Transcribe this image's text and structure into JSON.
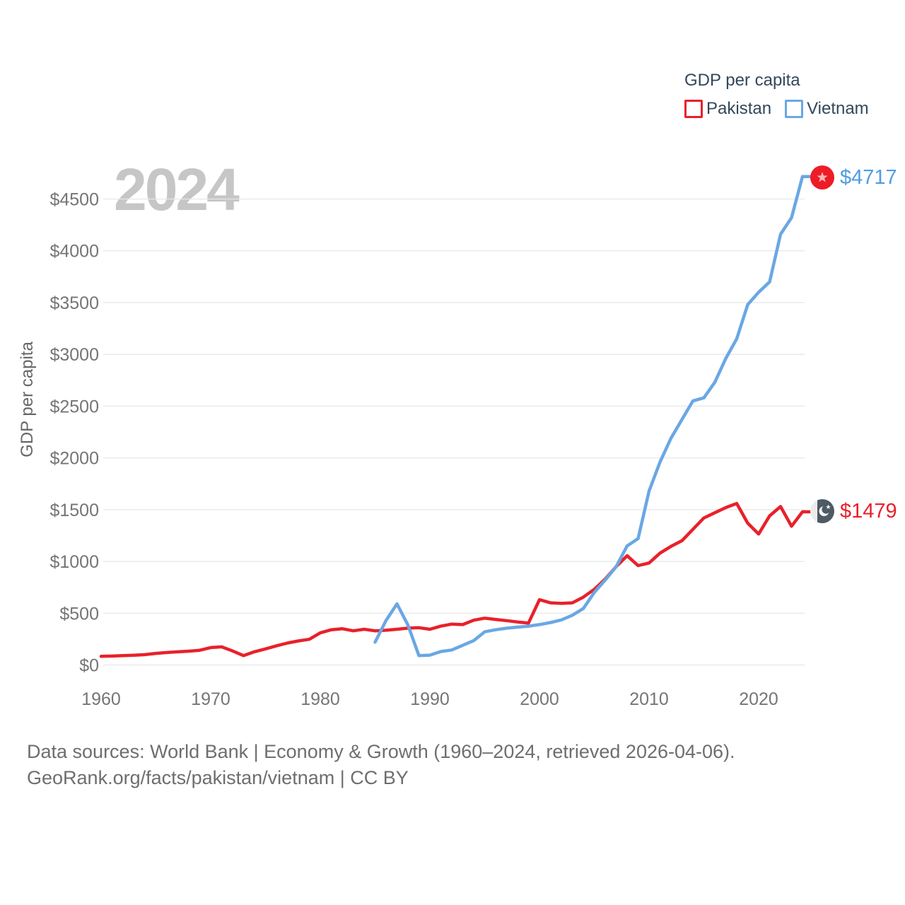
{
  "watermark_year": "2024",
  "legend": {
    "title": "GDP per capita",
    "items": [
      {
        "label": "Pakistan",
        "color": "#e8212a"
      },
      {
        "label": "Vietnam",
        "color": "#6aa7e4"
      }
    ]
  },
  "axes": {
    "y_title": "GDP per capita",
    "y_ticks": [
      {
        "label": "$0",
        "value": 0
      },
      {
        "label": "$500",
        "value": 500
      },
      {
        "label": "$1000",
        "value": 1000
      },
      {
        "label": "$1500",
        "value": 1500
      },
      {
        "label": "$2000",
        "value": 2000
      },
      {
        "label": "$2500",
        "value": 2500
      },
      {
        "label": "$3000",
        "value": 3000
      },
      {
        "label": "$3500",
        "value": 3500
      },
      {
        "label": "$4000",
        "value": 4000
      },
      {
        "label": "$4500",
        "value": 4500
      }
    ],
    "x_ticks": [
      {
        "label": "1960",
        "value": 1960
      },
      {
        "label": "1970",
        "value": 1970
      },
      {
        "label": "1980",
        "value": 1980
      },
      {
        "label": "1990",
        "value": 1990
      },
      {
        "label": "2000",
        "value": 2000
      },
      {
        "label": "2010",
        "value": 2010
      },
      {
        "label": "2020",
        "value": 2020
      }
    ]
  },
  "end_labels": {
    "vietnam": {
      "value": "$4717",
      "flag": "vietnam-circular-flag"
    },
    "pakistan": {
      "value": "$1479",
      "flag": "pakistan-circular-flag"
    }
  },
  "footer": {
    "line1": "Data sources: World Bank | Economy & Growth (1960–2024, retrieved 2026-04-06).",
    "line2": "GeoRank.org/facts/pakistan/vietnam | CC BY"
  },
  "colors": {
    "pakistan_line": "#e8212a",
    "vietnam_line": "#6aa7e4",
    "vietnam_value_text": "#4f9ce2",
    "pakistan_value_text": "#e8212a",
    "gridline": "#e7e7e7",
    "tick_text": "#757575",
    "legend_text": "#33475b",
    "watermark": "#c6c6c6",
    "footer_text": "#6e6e6e",
    "vietnam_flag_red": "#ed1c27",
    "vietnam_flag_star": "#f5b3b6",
    "pakistan_flag_body": "#4e5a64",
    "pakistan_flag_stripe": "#ececec"
  },
  "chart_data": {
    "type": "line",
    "title": "GDP per capita",
    "ylabel": "GDP per capita",
    "xlim": [
      1960,
      2024
    ],
    "ylim": [
      0,
      4750
    ],
    "grid": "horizontal",
    "legend_position": "top-right",
    "x": [
      1960,
      1961,
      1962,
      1963,
      1964,
      1965,
      1966,
      1967,
      1968,
      1969,
      1970,
      1971,
      1972,
      1973,
      1974,
      1975,
      1976,
      1977,
      1978,
      1979,
      1980,
      1981,
      1982,
      1983,
      1984,
      1985,
      1986,
      1987,
      1988,
      1989,
      1990,
      1991,
      1992,
      1993,
      1994,
      1995,
      1996,
      1997,
      1998,
      1999,
      2000,
      2001,
      2002,
      2003,
      2004,
      2005,
      2006,
      2007,
      2008,
      2009,
      2010,
      2011,
      2012,
      2013,
      2014,
      2015,
      2016,
      2017,
      2018,
      2019,
      2020,
      2021,
      2022,
      2023,
      2024
    ],
    "series": [
      {
        "name": "Pakistan",
        "color": "#e8212a",
        "values": [
          83,
          86,
          90,
          94,
          100,
          112,
          120,
          127,
          133,
          142,
          168,
          175,
          135,
          90,
          128,
          155,
          185,
          212,
          232,
          248,
          310,
          340,
          350,
          330,
          345,
          330,
          335,
          345,
          356,
          360,
          345,
          375,
          395,
          390,
          432,
          452,
          440,
          428,
          415,
          405,
          630,
          600,
          595,
          600,
          655,
          730,
          830,
          950,
          1055,
          960,
          985,
          1080,
          1145,
          1200,
          1310,
          1420,
          1470,
          1520,
          1560,
          1370,
          1265,
          1440,
          1530,
          1340,
          1479
        ]
      },
      {
        "name": "Vietnam",
        "color": "#6aa7e4",
        "values": [
          null,
          null,
          null,
          null,
          null,
          null,
          null,
          null,
          null,
          null,
          null,
          null,
          null,
          null,
          null,
          null,
          null,
          null,
          null,
          null,
          null,
          null,
          null,
          null,
          null,
          220,
          430,
          590,
          385,
          90,
          95,
          130,
          145,
          190,
          235,
          320,
          340,
          355,
          365,
          375,
          390,
          410,
          435,
          480,
          545,
          700,
          820,
          950,
          1150,
          1220,
          1680,
          1960,
          2190,
          2370,
          2550,
          2580,
          2730,
          2960,
          3150,
          3480,
          3600,
          3700,
          4160,
          4320,
          4717
        ]
      }
    ],
    "end_values": {
      "Pakistan": 1479,
      "Vietnam": 4717
    }
  }
}
